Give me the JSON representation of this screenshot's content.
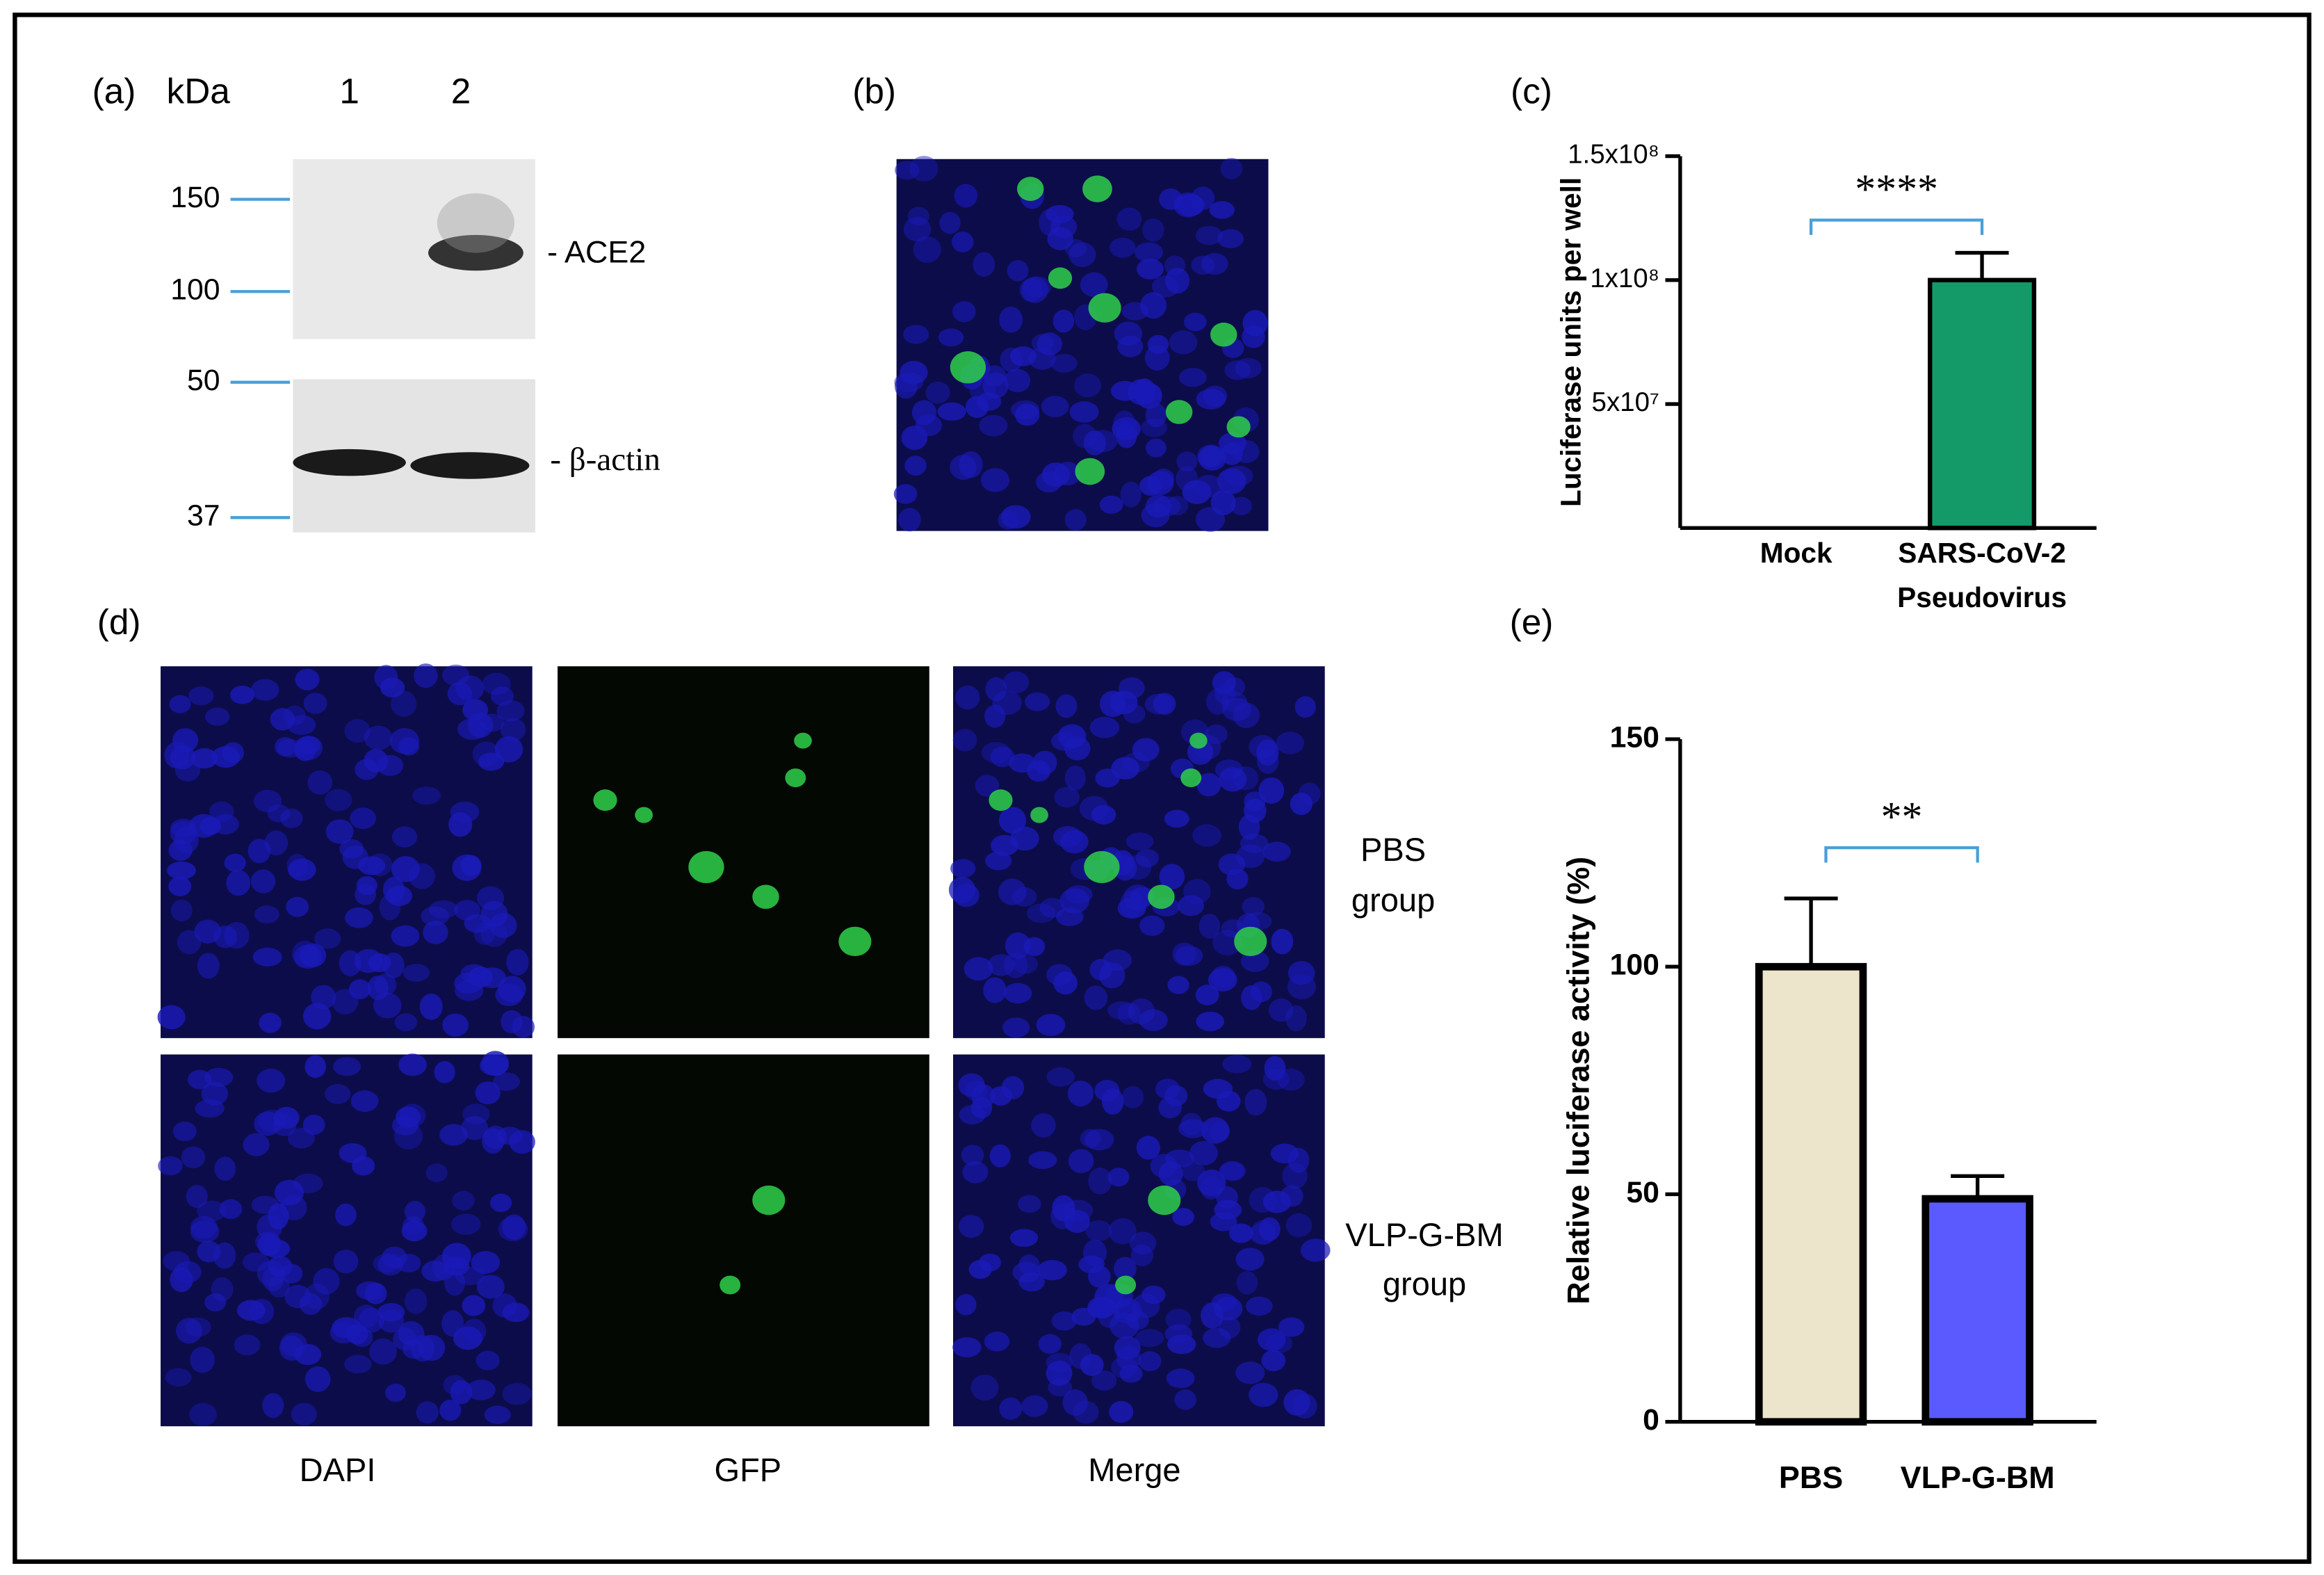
{
  "panels": {
    "a": {
      "label": "(a)",
      "unit": "kDa",
      "lanes": [
        "1",
        "2"
      ],
      "markers": [
        "150",
        "100",
        "50",
        "37"
      ],
      "bands": [
        "- ACE2",
        "- β-actin"
      ]
    },
    "b": {
      "label": "(b)"
    },
    "d": {
      "label": "(d)",
      "columns": [
        "DAPI",
        "GFP",
        "Merge"
      ],
      "rows": [
        [
          "PBS",
          "group"
        ],
        [
          "VLP-G-BM",
          "group"
        ]
      ]
    }
  },
  "chart_data": [
    {
      "type": "bar",
      "label": "(c)",
      "ylabel": "Luciferase units per well",
      "categories": [
        "Mock",
        "SARS-CoV-2 Pseudovirus"
      ],
      "values": [
        0,
        100000000
      ],
      "errors": [
        null,
        11000000
      ],
      "colors": [
        "#ffffff",
        "#139a68"
      ],
      "significance": "****",
      "ylim": [
        0,
        150000000
      ],
      "yticks": [
        {
          "value": 50000000,
          "label": "5x10⁷"
        },
        {
          "value": 100000000,
          "label": "1x10⁸"
        },
        {
          "value": 150000000,
          "label": "1.5x10⁸"
        }
      ]
    },
    {
      "type": "bar",
      "label": "(e)",
      "ylabel": "Relative luciferase activity (%)",
      "categories": [
        "PBS",
        "VLP-G-BM"
      ],
      "values": [
        100,
        49
      ],
      "errors": [
        15,
        5
      ],
      "colors": [
        "#ece5cc",
        "#5a5aff"
      ],
      "significance": "**",
      "ylim": [
        0,
        150
      ],
      "yticks": [
        0,
        50,
        100,
        150
      ]
    }
  ]
}
